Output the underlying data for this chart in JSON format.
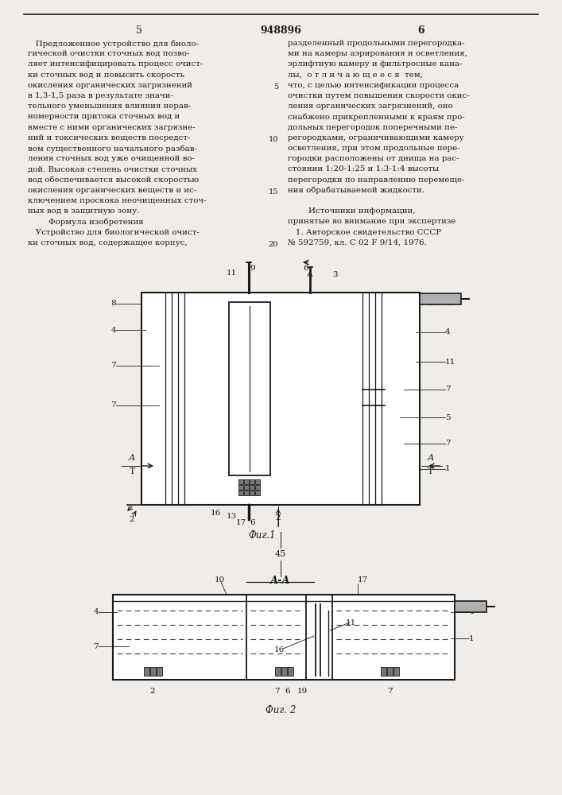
{
  "page_bg": "#f0ede8",
  "text_color": "#1a1a1a",
  "line_color": "#1a1a1a",
  "page_number_left": "5",
  "page_number_center": "948896",
  "page_number_right": "6",
  "left_col_text": [
    "   Предложенное устройство для биоло-",
    "гической очистки сточных вод позво-",
    "ляет интенсифицировать процесс очист-",
    "ки сточных вод и повысить скорость",
    "окисления органических загрязнений",
    "в 1,3-1,5 раза в результате значи-",
    "тельного уменьшения влияния нерав-",
    "номерности притока сточных вод и",
    "вместе с ними органических загрязне-",
    "ний и токсических веществ посредст-",
    "вом существенного начального разбав-",
    "ления сточных вод уже очищенной во-",
    "дой. Высокая степень очистки сточных",
    "вод обеспечивается высокой скоростью",
    "окисления органических веществ и ис-",
    "ключением проскока неочищенных сточ-",
    "ных вод в защитную зону.",
    "        Формула изобретения",
    "   Устройство для биологической очист-",
    "ки сточных вод, содержащее корпус,"
  ],
  "right_col_text": [
    "разделенный продольными перегородка-",
    "ми на камеры аэрирования и осветления,",
    "эрлифтную камеру и фильтросные кана-",
    "лы,  о т л и ч а ю щ е е с я  тем,",
    "что, с целью интенсификации процесса",
    "очистки путем повышения скорости окис-",
    "ления органических загрязнений, оно",
    "снабжено прикрепленными к краям про-",
    "дольных перегородок поперечными пе-",
    "регородками, ограничивающими камеру",
    "осветления, при этом продольные пере-",
    "городки расположены от днища на рас-",
    "стоянии 1:20-1:25 и 1:3-1:4 высоты",
    "перегородки по направлению перемеще-",
    "ния обрабатываемой жидкости.",
    "",
    "        Источники информации,",
    "принятые во внимание при экспертизе",
    "   1. Авторское свидетельство СССР",
    "№ 592759, кл. С 02 F 9/14, 1976."
  ],
  "fig1_label": "Фиг.1",
  "fig2_label": "Фиг. 2",
  "section_label": "А-А",
  "section_num": "45"
}
